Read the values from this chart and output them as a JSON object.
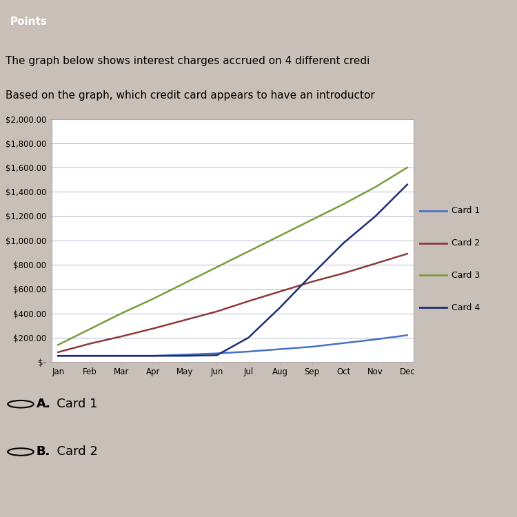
{
  "months": [
    "Jan",
    "Feb",
    "Mar",
    "Apr",
    "May",
    "Jun",
    "Jul",
    "Aug",
    "Sep",
    "Oct",
    "Nov",
    "Dec"
  ],
  "card1": [
    50,
    50,
    50,
    50,
    60,
    70,
    85,
    105,
    125,
    155,
    185,
    220
  ],
  "card2": [
    80,
    150,
    210,
    275,
    345,
    415,
    500,
    580,
    660,
    730,
    810,
    890
  ],
  "card3": [
    140,
    270,
    400,
    520,
    650,
    780,
    910,
    1040,
    1170,
    1300,
    1440,
    1600
  ],
  "card4": [
    50,
    50,
    50,
    50,
    50,
    55,
    200,
    450,
    720,
    980,
    1200,
    1460
  ],
  "card1_color": "#4472C4",
  "card2_color": "#8B3A3A",
  "card3_color": "#7B9B3A",
  "card4_color": "#1F2D6E",
  "legend_labels": [
    "Card 1",
    "Card 2",
    "Card 3",
    "Card 4"
  ],
  "ylim": [
    0,
    2000
  ],
  "yticks": [
    0,
    200,
    400,
    600,
    800,
    1000,
    1200,
    1400,
    1600,
    1800,
    2000
  ],
  "ytick_labels": [
    "$-",
    "$200.00",
    "$400.00",
    "$600.00",
    "$800.00",
    "$1,000.00",
    "$1,200.00",
    "$1,400.00",
    "$1,600.00",
    "$1,800.00",
    "$2,000.00"
  ],
  "plot_bg": "#FFFFFF",
  "fig_bg": "#C8C0B8",
  "grid_color": "#B0B8CC",
  "header_line1": "he graph below shows interest charges accrued on 4 different credi",
  "header_line2": "ased on the graph, which credit card appears to have an introductor",
  "top_label": "Points",
  "answer_a": "A.  Card 1",
  "answer_b": "B.  Card 2"
}
